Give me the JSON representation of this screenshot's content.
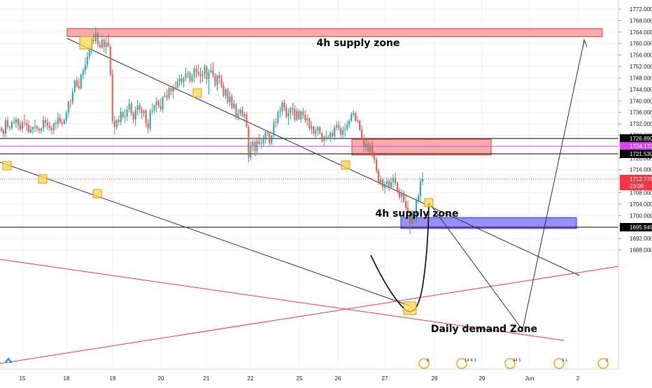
{
  "chart_data": {
    "type": "candlestick",
    "title": "",
    "xlabel": "",
    "ylabel": "",
    "ylim": [
      1686,
      1774
    ],
    "y_ticks": [
      "1772.000",
      "1768.000",
      "1764.000",
      "1760.000",
      "1756.000",
      "1752.000",
      "1748.000",
      "1744.000",
      "1740.000",
      "1736.000",
      "1732.000",
      "1728.000",
      "1720.000",
      "1716.000",
      "1708.000",
      "1704.000",
      "1700.000",
      "1692.000",
      "1688.000"
    ],
    "x_ticks": [
      "15",
      "18",
      "19",
      "20",
      "21",
      "22",
      "25",
      "26",
      "27",
      "28",
      "29",
      "Jun",
      "2"
    ],
    "price_tags": [
      {
        "label": "1726.890",
        "value": 1726.89,
        "color": "#000000"
      },
      {
        "label": "1724.170",
        "value": 1724.17,
        "color": "#e040fb"
      },
      {
        "label": "1721.530",
        "value": 1721.53,
        "color": "#000000"
      },
      {
        "label": "1712.778",
        "value": 1712.778,
        "color": "#f23645"
      },
      {
        "label": "23:06",
        "value": 1710.3,
        "color": "#f23645"
      },
      {
        "label": "1695.949",
        "value": 1695.949,
        "color": "#000000"
      }
    ],
    "zones": [
      {
        "label": "4h supply zone",
        "top": 1765.2,
        "bottom": 1762.4,
        "from": "18",
        "to": "2+"
      },
      {
        "label": "4h supply zone",
        "top": 1726.6,
        "bottom": 1721.1,
        "from": "26",
        "to": "28+"
      },
      {
        "label": "Daily demand Zone",
        "top": 1699.3,
        "bottom": 1695.5,
        "from": "27-",
        "to": "2"
      }
    ],
    "event_labels": [
      "8",
      "14 4 3",
      "34 5",
      "3 1",
      "2"
    ],
    "candles": [
      [
        1730.4,
        1731.2,
        1729.0,
        1729.6
      ],
      [
        1729.6,
        1730.4,
        1727.2,
        1728.6
      ],
      [
        1728.6,
        1734.2,
        1727.3,
        1733.2
      ],
      [
        1733.2,
        1734.6,
        1730.1,
        1731.0
      ],
      [
        1731.0,
        1731.3,
        1729.5,
        1730.5
      ],
      [
        1730.5,
        1733.1,
        1729.8,
        1732.5
      ],
      [
        1732.5,
        1734.4,
        1731.9,
        1732.5
      ],
      [
        1732.5,
        1734.4,
        1730.5,
        1733.6
      ],
      [
        1733.6,
        1734.1,
        1729.8,
        1731.7
      ],
      [
        1731.7,
        1733.0,
        1729.3,
        1730.2
      ],
      [
        1730.2,
        1733.3,
        1729.0,
        1732.5
      ],
      [
        1732.5,
        1735.3,
        1730.9,
        1732.2
      ],
      [
        1732.2,
        1733.5,
        1729.3,
        1731.5
      ],
      [
        1731.5,
        1733.3,
        1728.7,
        1729.1
      ],
      [
        1729.1,
        1731.4,
        1728.6,
        1730.1
      ],
      [
        1730.1,
        1731.0,
        1728.4,
        1730.8
      ],
      [
        1730.8,
        1733.4,
        1729.1,
        1731.1
      ],
      [
        1731.1,
        1731.6,
        1729.2,
        1730.3
      ],
      [
        1730.3,
        1730.8,
        1728.6,
        1729.6
      ],
      [
        1729.6,
        1730.7,
        1728.5,
        1730.4
      ],
      [
        1730.4,
        1734.7,
        1729.1,
        1733.3
      ],
      [
        1733.3,
        1734.4,
        1730.8,
        1732.3
      ],
      [
        1732.3,
        1733.9,
        1729.9,
        1731.3
      ],
      [
        1731.3,
        1732.8,
        1729.5,
        1730.5
      ],
      [
        1730.5,
        1731.5,
        1728.2,
        1729.8
      ],
      [
        1729.8,
        1732.5,
        1728.2,
        1732.3
      ],
      [
        1732.3,
        1733.4,
        1730.0,
        1731.9
      ],
      [
        1731.9,
        1736.0,
        1730.6,
        1734.1
      ],
      [
        1734.1,
        1735.5,
        1731.8,
        1732.5
      ],
      [
        1732.5,
        1733.6,
        1731.0,
        1732.0
      ],
      [
        1732.0,
        1734.0,
        1731.7,
        1733.2
      ],
      [
        1733.2,
        1736.8,
        1732.0,
        1736.0
      ],
      [
        1736.0,
        1740.1,
        1734.1,
        1739.7
      ],
      [
        1739.7,
        1740.7,
        1737.5,
        1739.6
      ],
      [
        1739.6,
        1744.6,
        1738.7,
        1743.1
      ],
      [
        1743.1,
        1747.4,
        1742.6,
        1747.1
      ],
      [
        1747.1,
        1748.4,
        1744.4,
        1745.2
      ],
      [
        1745.2,
        1748.0,
        1743.7,
        1744.4
      ],
      [
        1744.4,
        1749.6,
        1743.9,
        1749.1
      ],
      [
        1749.1,
        1751.4,
        1747.5,
        1750.6
      ],
      [
        1750.6,
        1755.0,
        1749.1,
        1752.6
      ],
      [
        1752.6,
        1757.1,
        1751.3,
        1755.4
      ],
      [
        1755.4,
        1758.4,
        1754.2,
        1757.9
      ],
      [
        1757.9,
        1762.4,
        1756.2,
        1761.3
      ],
      [
        1761.3,
        1763.3,
        1759.8,
        1760.8
      ],
      [
        1760.8,
        1765.8,
        1759.8,
        1763.6
      ],
      [
        1763.6,
        1764.2,
        1758.8,
        1759.8
      ],
      [
        1759.8,
        1760.7,
        1758.5,
        1758.6
      ],
      [
        1758.6,
        1763.0,
        1758.1,
        1761.4
      ],
      [
        1761.4,
        1761.9,
        1757.0,
        1758.8
      ],
      [
        1758.8,
        1762.3,
        1756.4,
        1760.4
      ],
      [
        1760.4,
        1763.2,
        1758.6,
        1759.0
      ],
      [
        1759.0,
        1759.8,
        1748.4,
        1749.2
      ],
      [
        1749.2,
        1750.9,
        1731.9,
        1733.0
      ],
      [
        1733.0,
        1734.8,
        1728.3,
        1730.8
      ],
      [
        1730.8,
        1733.6,
        1729.8,
        1733.4
      ],
      [
        1733.4,
        1734.9,
        1731.4,
        1732.6
      ],
      [
        1732.6,
        1737.7,
        1731.4,
        1736.2
      ],
      [
        1736.2,
        1736.5,
        1733.5,
        1734.4
      ],
      [
        1734.4,
        1737.2,
        1732.3,
        1734.6
      ],
      [
        1734.6,
        1738.3,
        1733.0,
        1736.9
      ],
      [
        1736.9,
        1740.7,
        1736.0,
        1739.0
      ],
      [
        1739.0,
        1739.8,
        1734.7,
        1735.4
      ],
      [
        1735.4,
        1736.3,
        1732.2,
        1733.5
      ],
      [
        1733.5,
        1738.0,
        1731.2,
        1736.9
      ],
      [
        1736.9,
        1740.3,
        1734.9,
        1738.5
      ],
      [
        1738.5,
        1739.5,
        1735.6,
        1737.0
      ],
      [
        1737.0,
        1737.9,
        1733.7,
        1735.7
      ],
      [
        1735.7,
        1737.0,
        1734.2,
        1736.5
      ],
      [
        1736.5,
        1737.2,
        1730.7,
        1732.1
      ],
      [
        1732.1,
        1733.5,
        1728.6,
        1730.4
      ],
      [
        1730.4,
        1737.3,
        1729.4,
        1736.3
      ],
      [
        1736.3,
        1739.2,
        1735.1,
        1736.7
      ],
      [
        1736.7,
        1738.7,
        1735.6,
        1738.5
      ],
      [
        1738.5,
        1741.2,
        1736.0,
        1739.9
      ],
      [
        1739.9,
        1740.5,
        1737.5,
        1738.2
      ],
      [
        1738.2,
        1740.9,
        1736.3,
        1737.0
      ],
      [
        1737.0,
        1741.6,
        1735.9,
        1741.4
      ],
      [
        1741.4,
        1743.1,
        1741.1,
        1741.9
      ],
      [
        1741.9,
        1744.0,
        1740.1,
        1741.1
      ],
      [
        1741.1,
        1745.0,
        1740.4,
        1744.4
      ],
      [
        1744.4,
        1745.0,
        1742.0,
        1743.2
      ],
      [
        1743.2,
        1745.6,
        1740.8,
        1744.5
      ],
      [
        1744.5,
        1746.7,
        1743.8,
        1744.4
      ],
      [
        1744.4,
        1748.0,
        1743.9,
        1746.7
      ],
      [
        1746.7,
        1749.1,
        1745.1,
        1747.8
      ],
      [
        1747.8,
        1749.4,
        1745.4,
        1746.5
      ],
      [
        1746.5,
        1748.4,
        1744.7,
        1748.0
      ],
      [
        1748.0,
        1751.6,
        1746.9,
        1749.5
      ],
      [
        1749.5,
        1750.5,
        1747.9,
        1749.7
      ],
      [
        1749.7,
        1750.4,
        1746.2,
        1746.8
      ],
      [
        1746.8,
        1749.4,
        1746.2,
        1748.4
      ],
      [
        1748.4,
        1752.3,
        1746.4,
        1751.3
      ],
      [
        1751.3,
        1752.4,
        1747.8,
        1750.1
      ],
      [
        1750.1,
        1752.7,
        1748.4,
        1749.4
      ],
      [
        1749.4,
        1751.6,
        1746.1,
        1748.5
      ],
      [
        1748.5,
        1750.7,
        1746.6,
        1749.2
      ],
      [
        1749.2,
        1752.7,
        1747.9,
        1751.9
      ],
      [
        1751.9,
        1752.5,
        1745.8,
        1747.6
      ],
      [
        1747.6,
        1751.0,
        1742.2,
        1749.9
      ],
      [
        1749.9,
        1753.0,
        1749.6,
        1750.7
      ],
      [
        1750.7,
        1753.5,
        1748.0,
        1748.8
      ],
      [
        1748.8,
        1749.7,
        1744.8,
        1745.5
      ],
      [
        1745.5,
        1749.3,
        1743.5,
        1748.8
      ],
      [
        1748.8,
        1750.2,
        1746.0,
        1747.8
      ],
      [
        1747.8,
        1749.1,
        1744.4,
        1745.3
      ],
      [
        1745.3,
        1746.6,
        1741.2,
        1741.8
      ],
      [
        1741.8,
        1744.6,
        1740.7,
        1744.0
      ],
      [
        1744.0,
        1744.5,
        1738.6,
        1739.6
      ],
      [
        1739.6,
        1743.4,
        1738.1,
        1741.6
      ],
      [
        1741.6,
        1742.5,
        1737.0,
        1737.5
      ],
      [
        1737.5,
        1740.4,
        1736.9,
        1739.0
      ],
      [
        1739.0,
        1739.2,
        1733.4,
        1734.2
      ],
      [
        1734.2,
        1737.0,
        1733.3,
        1735.6
      ],
      [
        1735.6,
        1737.7,
        1734.7,
        1736.9
      ],
      [
        1736.9,
        1738.1,
        1734.2,
        1734.7
      ],
      [
        1734.7,
        1736.2,
        1732.8,
        1735.4
      ],
      [
        1735.4,
        1736.2,
        1730.6,
        1730.9
      ],
      [
        1730.9,
        1731.7,
        1718.5,
        1720.3
      ],
      [
        1720.3,
        1726.0,
        1719.2,
        1724.4
      ],
      [
        1724.4,
        1726.5,
        1722.4,
        1725.7
      ],
      [
        1725.7,
        1726.3,
        1720.8,
        1722.4
      ],
      [
        1722.4,
        1727.2,
        1721.1,
        1726.1
      ],
      [
        1726.1,
        1728.4,
        1724.5,
        1725.0
      ],
      [
        1725.0,
        1726.7,
        1723.4,
        1725.2
      ],
      [
        1725.2,
        1728.1,
        1723.9,
        1727.1
      ],
      [
        1727.1,
        1729.6,
        1725.1,
        1729.0
      ],
      [
        1729.0,
        1729.3,
        1727.8,
        1728.8
      ],
      [
        1728.8,
        1729.0,
        1724.4,
        1725.2
      ],
      [
        1725.2,
        1728.0,
        1724.6,
        1727.8
      ],
      [
        1727.8,
        1733.7,
        1727.3,
        1732.6
      ],
      [
        1732.6,
        1734.0,
        1730.7,
        1732.4
      ],
      [
        1732.4,
        1736.9,
        1731.6,
        1736.0
      ],
      [
        1736.0,
        1737.9,
        1734.1,
        1736.3
      ],
      [
        1736.3,
        1740.2,
        1734.8,
        1739.4
      ],
      [
        1739.4,
        1740.5,
        1736.4,
        1737.7
      ],
      [
        1737.7,
        1738.9,
        1733.8,
        1734.4
      ],
      [
        1734.4,
        1737.4,
        1731.5,
        1735.6
      ],
      [
        1735.6,
        1738.1,
        1733.7,
        1737.5
      ],
      [
        1737.5,
        1739.4,
        1734.8,
        1737.1
      ],
      [
        1737.1,
        1738.4,
        1732.6,
        1733.5
      ],
      [
        1733.5,
        1737.6,
        1732.9,
        1736.5
      ],
      [
        1736.5,
        1737.2,
        1733.4,
        1733.5
      ],
      [
        1733.5,
        1736.7,
        1732.4,
        1736.3
      ],
      [
        1736.3,
        1737.6,
        1733.8,
        1735.1
      ],
      [
        1735.1,
        1736.7,
        1732.3,
        1733.2
      ],
      [
        1733.2,
        1735.2,
        1731.3,
        1734.0
      ],
      [
        1734.0,
        1734.2,
        1729.5,
        1730.4
      ],
      [
        1730.4,
        1733.0,
        1728.4,
        1731.1
      ],
      [
        1731.1,
        1731.3,
        1727.8,
        1728.6
      ],
      [
        1728.6,
        1730.9,
        1726.9,
        1729.6
      ],
      [
        1729.6,
        1731.3,
        1727.9,
        1730.8
      ],
      [
        1730.8,
        1731.2,
        1728.2,
        1728.7
      ],
      [
        1728.7,
        1729.1,
        1725.4,
        1726.0
      ],
      [
        1726.0,
        1728.0,
        1724.1,
        1727.4
      ],
      [
        1727.4,
        1729.7,
        1726.1,
        1727.5
      ],
      [
        1727.5,
        1728.1,
        1726.7,
        1727.3
      ],
      [
        1727.3,
        1729.4,
        1725.7,
        1728.9
      ],
      [
        1728.9,
        1730.0,
        1727.2,
        1727.6
      ],
      [
        1727.6,
        1731.5,
        1726.3,
        1730.7
      ],
      [
        1730.7,
        1732.9,
        1729.7,
        1731.5
      ],
      [
        1731.5,
        1733.0,
        1729.6,
        1730.5
      ],
      [
        1730.5,
        1731.0,
        1727.2,
        1728.2
      ],
      [
        1728.2,
        1731.2,
        1726.8,
        1729.9
      ],
      [
        1729.9,
        1732.2,
        1727.5,
        1730.2
      ],
      [
        1730.2,
        1733.1,
        1729.4,
        1731.6
      ],
      [
        1731.6,
        1733.7,
        1730.5,
        1733.0
      ],
      [
        1733.0,
        1736.1,
        1732.6,
        1735.3
      ],
      [
        1735.3,
        1736.8,
        1734.3,
        1735.7
      ],
      [
        1735.7,
        1736.3,
        1732.7,
        1733.1
      ],
      [
        1733.1,
        1734.5,
        1732.1,
        1733.0
      ],
      [
        1733.0,
        1733.5,
        1729.5,
        1730.0
      ],
      [
        1730.0,
        1731.6,
        1726.5,
        1727.0
      ],
      [
        1727.0,
        1728.2,
        1722.2,
        1723.8
      ],
      [
        1723.8,
        1726.5,
        1722.3,
        1725.0
      ],
      [
        1725.0,
        1726.3,
        1721.9,
        1722.3
      ],
      [
        1722.3,
        1725.5,
        1721.7,
        1724.4
      ],
      [
        1724.4,
        1726.0,
        1720.4,
        1721.5
      ],
      [
        1721.5,
        1722.4,
        1718.2,
        1719.5
      ],
      [
        1719.5,
        1720.3,
        1714.8,
        1715.6
      ],
      [
        1715.6,
        1716.4,
        1710.8,
        1711.5
      ],
      [
        1711.5,
        1714.1,
        1710.5,
        1712.6
      ],
      [
        1712.6,
        1713.1,
        1708.6,
        1709.8
      ],
      [
        1709.8,
        1712.0,
        1707.6,
        1711.0
      ],
      [
        1711.0,
        1713.3,
        1709.4,
        1712.0
      ],
      [
        1712.0,
        1712.8,
        1708.6,
        1710.1
      ],
      [
        1710.1,
        1713.4,
        1709.5,
        1711.7
      ],
      [
        1711.7,
        1714.4,
        1709.7,
        1713.2
      ],
      [
        1713.2,
        1715.0,
        1710.4,
        1711.4
      ],
      [
        1711.4,
        1711.9,
        1707.6,
        1708.6
      ],
      [
        1708.6,
        1709.6,
        1705.6,
        1706.5
      ],
      [
        1706.5,
        1709.1,
        1704.5,
        1708.0
      ],
      [
        1708.0,
        1708.8,
        1704.3,
        1704.9
      ],
      [
        1704.9,
        1706.9,
        1701.8,
        1702.7
      ],
      [
        1702.7,
        1705.3,
        1700.4,
        1701.2
      ],
      [
        1701.2,
        1702.2,
        1693.5,
        1697.3
      ],
      [
        1697.3,
        1702.1,
        1697.1,
        1700.9
      ],
      [
        1700.9,
        1701.2,
        1697.4,
        1698.3
      ],
      [
        1698.3,
        1706.2,
        1697.7,
        1705.3
      ],
      [
        1705.3,
        1707.8,
        1704.2,
        1706.8
      ],
      [
        1706.8,
        1713.2,
        1704.7,
        1712.0
      ],
      [
        1712.0,
        1715.1,
        1710.6,
        1712.8
      ]
    ]
  },
  "colors": {
    "up": "#26a69a",
    "down": "#ef5350",
    "zone_fill": "#f6a3a3",
    "zone_border": "#e53935",
    "demand_fill": "#8c84f5",
    "demand_border": "#3f2bd8",
    "marker": "#ffd54f",
    "magenta": "#e040fb",
    "red_line": "#f23645"
  }
}
